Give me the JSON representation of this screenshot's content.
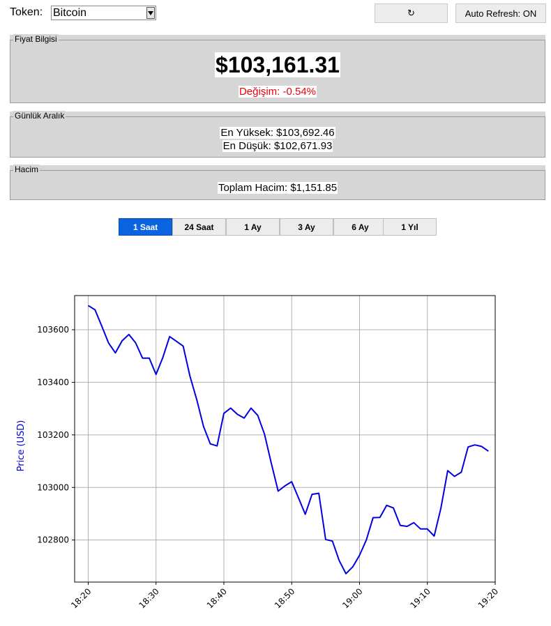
{
  "toolbar": {
    "token_label": "Token:",
    "token_value": "Bitcoin",
    "refresh_label": "↻",
    "auto_refresh_label": "Auto Refresh: ON"
  },
  "price_panel": {
    "legend": "Fiyat Bilgisi",
    "price": "$103,161.31",
    "change": "Değişim: -0.54%",
    "change_color": "#e8000b"
  },
  "range_panel": {
    "legend": "Günlük Aralık",
    "high": "En Yüksek: $103,692.46",
    "low": "En Düşük: $102,671.93"
  },
  "volume_panel": {
    "legend": "Hacim",
    "total": "Toplam Hacim: $1,151.85"
  },
  "timeframes": [
    {
      "label": "1 Saat",
      "active": true
    },
    {
      "label": "24 Saat",
      "active": false
    },
    {
      "label": "1 Ay",
      "active": false
    },
    {
      "label": "3 Ay",
      "active": false
    },
    {
      "label": "6 Ay",
      "active": false
    },
    {
      "label": "1 Yıl",
      "active": false
    }
  ],
  "chart_data": {
    "type": "line",
    "ylabel": "Price (USD)",
    "xlabel": "",
    "title": "",
    "line_color": "#0000e0",
    "grid": true,
    "ylim": [
      102640,
      103730
    ],
    "xlim": [
      -2,
      60
    ],
    "yticks": [
      102800,
      103000,
      103200,
      103400,
      103600
    ],
    "xticks": [
      {
        "x": 0,
        "label": "18:20"
      },
      {
        "x": 10,
        "label": "18:30"
      },
      {
        "x": 20,
        "label": "18:40"
      },
      {
        "x": 30,
        "label": "18:50"
      },
      {
        "x": 40,
        "label": "19:00"
      },
      {
        "x": 50,
        "label": "19:10"
      },
      {
        "x": 60,
        "label": "19:20"
      }
    ],
    "series": [
      {
        "x": [
          0,
          1,
          2,
          3,
          4,
          5,
          6,
          7,
          8,
          9,
          10,
          11,
          12,
          13,
          14,
          15,
          16,
          17,
          18,
          19,
          20,
          21,
          22,
          23,
          24,
          25,
          26,
          27,
          28,
          29,
          30,
          31,
          32,
          33,
          34,
          35,
          36,
          37,
          38,
          39,
          40,
          41,
          42,
          43,
          44,
          45,
          46,
          47,
          48,
          49,
          50,
          51,
          52,
          53,
          54,
          55,
          56,
          57,
          58,
          59
        ],
        "values": [
          103692,
          103676,
          103614,
          103550,
          103512,
          103558,
          103582,
          103550,
          103492,
          103492,
          103430,
          103494,
          103574,
          103556,
          103538,
          103424,
          103334,
          103232,
          103166,
          103158,
          103282,
          103302,
          103278,
          103264,
          103302,
          103274,
          103202,
          103092,
          102986,
          103006,
          103022,
          102960,
          102898,
          102974,
          102978,
          102802,
          102796,
          102722,
          102672,
          102698,
          102742,
          102800,
          102885,
          102886,
          102932,
          102922,
          102856,
          102852,
          102866,
          102842,
          102842,
          102815,
          102922,
          103064,
          103042,
          103058,
          103154,
          103162,
          103156,
          103138
        ]
      }
    ]
  }
}
